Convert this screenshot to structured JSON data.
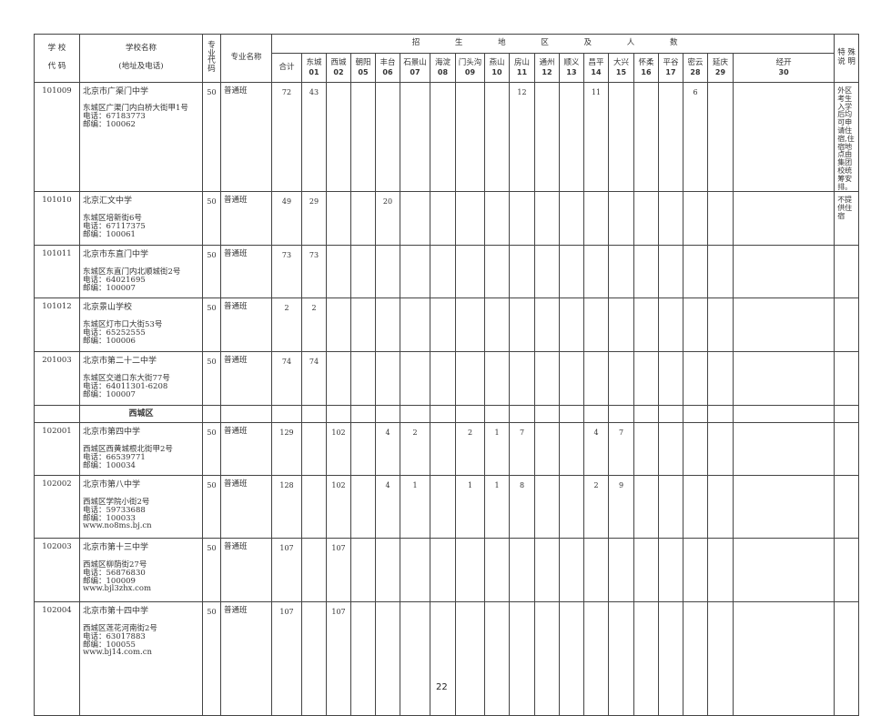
{
  "header": {
    "school_code": [
      "学 校",
      "代 码"
    ],
    "school_name": [
      "学校名称",
      "(地址及电话)"
    ],
    "major_code": "专业代码",
    "major_name": "专业名称",
    "region_title": "招 生 地 区 及 人 数",
    "total": "合计",
    "notes": "特 殊 说 明",
    "districts": [
      {
        "name": "东城",
        "code": "01"
      },
      {
        "name": "西城",
        "code": "02"
      },
      {
        "name": "朝阳",
        "code": "05"
      },
      {
        "name": "丰台",
        "code": "06"
      },
      {
        "name": "石景山",
        "code": "07"
      },
      {
        "name": "海淀",
        "code": "08"
      },
      {
        "name": "门头沟",
        "code": "09"
      },
      {
        "name": "燕山",
        "code": "10"
      },
      {
        "name": "房山",
        "code": "11"
      },
      {
        "name": "通州",
        "code": "12"
      },
      {
        "name": "顺义",
        "code": "13"
      },
      {
        "name": "昌平",
        "code": "14"
      },
      {
        "name": "大兴",
        "code": "15"
      },
      {
        "name": "怀柔",
        "code": "16"
      },
      {
        "name": "平谷",
        "code": "17"
      },
      {
        "name": "密云",
        "code": "28"
      },
      {
        "name": "延庆",
        "code": "29"
      },
      {
        "name": "经开",
        "code": "30"
      }
    ]
  },
  "rows": [
    {
      "code": "101009",
      "name": "北京市广渠门中学",
      "address": [
        "东城区广渠门内白桥大街甲1号",
        "电话：67183773",
        "邮编：100062"
      ],
      "major_code": "50",
      "major": "普通班",
      "total": "72",
      "counts": [
        "43",
        "",
        "",
        "",
        "",
        "",
        "",
        "",
        "12",
        "",
        "",
        "11",
        "",
        "",
        "",
        "6",
        "",
        ""
      ],
      "note": "外区考生入学后均可申请住宿,住宿地点由集团校统筹安排。"
    },
    {
      "code": "101010",
      "name": "北京汇文中学",
      "address": [
        "东城区培新街6号",
        "电话：67117375",
        "邮编：100061"
      ],
      "major_code": "50",
      "major": "普通班",
      "total": "49",
      "counts": [
        "29",
        "",
        "",
        "20",
        "",
        "",
        "",
        "",
        "",
        "",
        "",
        "",
        "",
        "",
        "",
        "",
        "",
        ""
      ],
      "note": "不提供住宿"
    },
    {
      "code": "101011",
      "name": "北京市东直门中学",
      "address": [
        "东城区东直门内北顺城街2号",
        "电话：64021695",
        "邮编：100007"
      ],
      "major_code": "50",
      "major": "普通班",
      "total": "73",
      "counts": [
        "73",
        "",
        "",
        "",
        "",
        "",
        "",
        "",
        "",
        "",
        "",
        "",
        "",
        "",
        "",
        "",
        "",
        ""
      ],
      "note": ""
    },
    {
      "code": "101012",
      "name": "北京景山学校",
      "address": [
        "东城区灯市口大街53号",
        "电话：65252555",
        "邮编：100006"
      ],
      "major_code": "50",
      "major": "普通班",
      "total": "2",
      "counts": [
        "2",
        "",
        "",
        "",
        "",
        "",
        "",
        "",
        "",
        "",
        "",
        "",
        "",
        "",
        "",
        "",
        "",
        ""
      ],
      "note": ""
    },
    {
      "code": "201003",
      "name": "北京市第二十二中学",
      "address": [
        "东城区交道口东大街77号",
        "电话：64011301-6208",
        "邮编：100007"
      ],
      "major_code": "50",
      "major": "普通班",
      "total": "74",
      "counts": [
        "74",
        "",
        "",
        "",
        "",
        "",
        "",
        "",
        "",
        "",
        "",
        "",
        "",
        "",
        "",
        "",
        "",
        ""
      ],
      "note": ""
    },
    {
      "section": "西城区"
    },
    {
      "code": "102001",
      "name": "北京市第四中学",
      "address": [
        "西城区西黄城根北街甲2号",
        "电话：66539771",
        "邮编：100034"
      ],
      "major_code": "50",
      "major": "普通班",
      "total": "129",
      "counts": [
        "",
        "102",
        "",
        "4",
        "2",
        "",
        "2",
        "1",
        "7",
        "",
        "",
        "4",
        "7",
        "",
        "",
        "",
        "",
        ""
      ],
      "note": ""
    },
    {
      "code": "102002",
      "name": "北京市第八中学",
      "address": [
        "西城区学院小街2号",
        "电话：59733688",
        "邮编：100033",
        "www.no8ms.bj.cn"
      ],
      "major_code": "50",
      "major": "普通班",
      "total": "128",
      "counts": [
        "",
        "102",
        "",
        "4",
        "1",
        "",
        "1",
        "1",
        "8",
        "",
        "",
        "2",
        "9",
        "",
        "",
        "",
        "",
        ""
      ],
      "note": ""
    },
    {
      "code": "102003",
      "name": "北京市第十三中学",
      "address": [
        "西城区柳荫街27号",
        "电话：56876830",
        "邮编：100009",
        "www.bjl3zhx.com"
      ],
      "major_code": "50",
      "major": "普通班",
      "total": "107",
      "counts": [
        "",
        "107",
        "",
        "",
        "",
        "",
        "",
        "",
        "",
        "",
        "",
        "",
        "",
        "",
        "",
        "",
        "",
        ""
      ],
      "note": ""
    },
    {
      "code": "102004",
      "name": "北京市第十四中学",
      "address": [
        "西城区莲花河南街2号",
        "电话：63017883",
        "邮编：100055",
        "www.bj14.com.cn"
      ],
      "major_code": "50",
      "major": "普通班",
      "total": "107",
      "counts": [
        "",
        "107",
        "",
        "",
        "",
        "",
        "",
        "",
        "",
        "",
        "",
        "",
        "",
        "",
        "",
        "",
        "",
        ""
      ],
      "note": ""
    }
  ],
  "page_number": "22"
}
